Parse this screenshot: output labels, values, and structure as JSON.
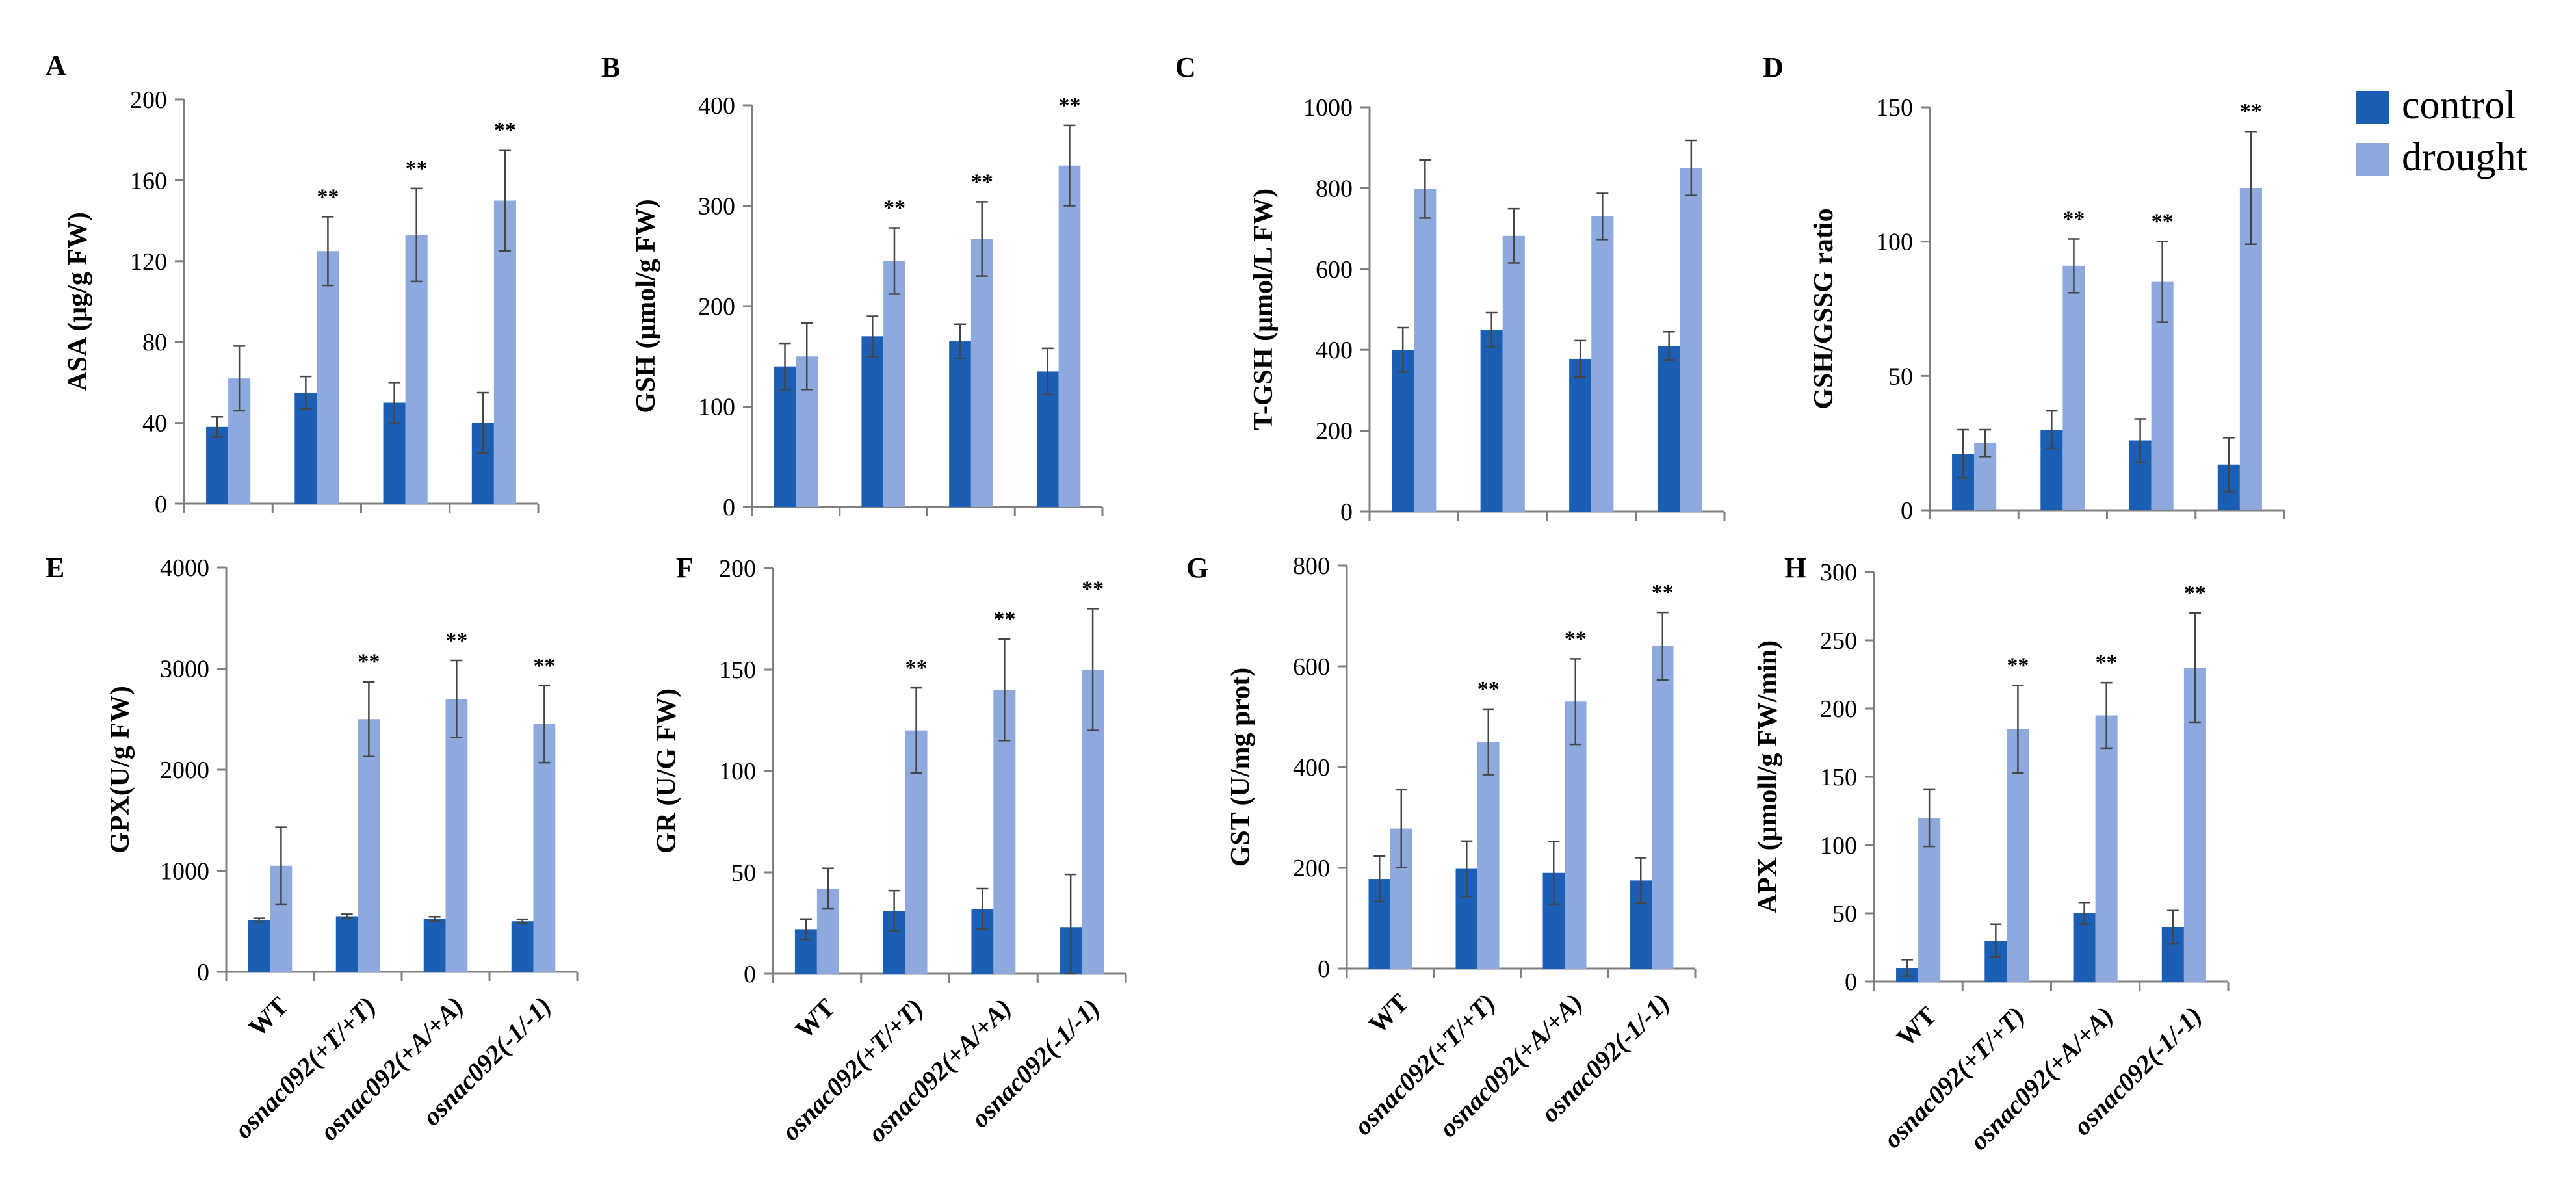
{
  "legend": {
    "items": [
      {
        "label": "control",
        "color": "#1a5fb4"
      },
      {
        "label": "drought",
        "color": "#8ea9de"
      }
    ]
  },
  "colors": {
    "control": "#1a5fb4",
    "drought": "#8ea9de",
    "axis": "#7f7f7f"
  },
  "significance_mark": "**",
  "categories": [
    "WT",
    "osnac092(+T/+T)",
    "osnac092(+A/+A)",
    "osnac092(-1/-1)"
  ],
  "chart_data": [
    {
      "type": "bar",
      "panel": "A",
      "ylabel": "ASA (μg/g   FW)",
      "ylim": [
        0,
        200
      ],
      "yticks": [
        0,
        40,
        80,
        120,
        160,
        200
      ],
      "categories": [
        "WT",
        "osnac092(+T/+T)",
        "osnac092(+A/+A)",
        "osnac092(-1/-1)"
      ],
      "series": [
        {
          "name": "control",
          "values": [
            38,
            55,
            50,
            40
          ],
          "errors": [
            5,
            8,
            10,
            15
          ]
        },
        {
          "name": "drought",
          "values": [
            62,
            125,
            133,
            150
          ],
          "errors": [
            16,
            17,
            23,
            25
          ]
        }
      ],
      "significance": [
        false,
        true,
        true,
        true
      ]
    },
    {
      "type": "bar",
      "panel": "B",
      "ylabel": "GSH  (μmol/g FW)",
      "ylim": [
        0,
        400
      ],
      "yticks": [
        0,
        100,
        200,
        300,
        400
      ],
      "categories": [
        "WT",
        "osnac092(+T/+T)",
        "osnac092(+A/+A)",
        "osnac092(-1/-1)"
      ],
      "series": [
        {
          "name": "control",
          "values": [
            140,
            170,
            165,
            135
          ],
          "errors": [
            23,
            20,
            17,
            23
          ]
        },
        {
          "name": "drought",
          "values": [
            150,
            245,
            267,
            340
          ],
          "errors": [
            33,
            33,
            37,
            40
          ]
        }
      ],
      "significance": [
        false,
        true,
        true,
        true
      ]
    },
    {
      "type": "bar",
      "panel": "C",
      "ylabel": "T-GSH   (μmol/L FW)",
      "ylim": [
        0,
        1000
      ],
      "yticks": [
        0,
        200,
        400,
        600,
        800,
        1000
      ],
      "categories": [
        "WT",
        "osnac092(+T/+T)",
        "osnac092(+A/+A)",
        "osnac092(-1/-1)"
      ],
      "series": [
        {
          "name": "control",
          "values": [
            400,
            450,
            378,
            410
          ],
          "errors": [
            55,
            42,
            45,
            35
          ]
        },
        {
          "name": "drought",
          "values": [
            798,
            682,
            730,
            850
          ],
          "errors": [
            72,
            67,
            57,
            68
          ]
        }
      ],
      "significance": [
        false,
        false,
        false,
        false
      ]
    },
    {
      "type": "bar",
      "panel": "D",
      "ylabel": "GSH/GSSG  ratio",
      "ylim": [
        0,
        150
      ],
      "yticks": [
        0,
        50,
        100,
        150
      ],
      "categories": [
        "WT",
        "osnac092(+T/+T)",
        "osnac092(+A/+A)",
        "osnac092(-1/-1)"
      ],
      "series": [
        {
          "name": "control",
          "values": [
            21,
            30,
            26,
            17
          ],
          "errors": [
            9,
            7,
            8,
            10
          ]
        },
        {
          "name": "drought",
          "values": [
            25,
            91,
            85,
            120
          ],
          "errors": [
            5,
            10,
            15,
            21
          ]
        }
      ],
      "significance": [
        false,
        true,
        true,
        true
      ]
    },
    {
      "type": "bar",
      "panel": "E",
      "ylabel": "GPX(U/g  FW)",
      "ylim": [
        0,
        4000
      ],
      "yticks": [
        0,
        1000,
        2000,
        3000,
        4000
      ],
      "categories": [
        "WT",
        "osnac092(+T/+T)",
        "osnac092(+A/+A)",
        "osnac092(-1/-1)"
      ],
      "series": [
        {
          "name": "control",
          "values": [
            510,
            550,
            525,
            500
          ],
          "errors": [
            20,
            20,
            20,
            20
          ]
        },
        {
          "name": "drought",
          "values": [
            1050,
            2500,
            2700,
            2450
          ],
          "errors": [
            380,
            370,
            380,
            380
          ]
        }
      ],
      "significance": [
        false,
        true,
        true,
        true
      ]
    },
    {
      "type": "bar",
      "panel": "F",
      "ylabel": "GR  (U/G FW)",
      "ylim": [
        0,
        200
      ],
      "yticks": [
        0,
        50,
        100,
        150,
        200
      ],
      "categories": [
        "WT",
        "osnac092(+T/+T)",
        "osnac092(+A/+A)",
        "osnac092(-1/-1)"
      ],
      "series": [
        {
          "name": "control",
          "values": [
            22,
            31,
            32,
            23
          ],
          "errors": [
            5,
            10,
            10,
            26
          ]
        },
        {
          "name": "drought",
          "values": [
            42,
            120,
            140,
            150
          ],
          "errors": [
            10,
            21,
            25,
            30
          ]
        }
      ],
      "significance": [
        false,
        true,
        true,
        true
      ]
    },
    {
      "type": "bar",
      "panel": "G",
      "ylabel": "GST  (U/mg  prot)",
      "ylim": [
        0,
        800
      ],
      "yticks": [
        0,
        200,
        400,
        600,
        800
      ],
      "categories": [
        "WT",
        "osnac092(+T/+T)",
        "osnac092(+A/+A)",
        "osnac092(-1/-1)"
      ],
      "series": [
        {
          "name": "control",
          "values": [
            178,
            198,
            190,
            175
          ],
          "errors": [
            45,
            55,
            62,
            45
          ]
        },
        {
          "name": "drought",
          "values": [
            278,
            450,
            530,
            640
          ],
          "errors": [
            77,
            65,
            85,
            67
          ]
        }
      ],
      "significance": [
        false,
        true,
        true,
        true
      ]
    },
    {
      "type": "bar",
      "panel": "H",
      "ylabel": "APX   (μmoll/g  FW/min)",
      "ylim": [
        0,
        300
      ],
      "yticks": [
        0,
        50,
        100,
        150,
        200,
        250,
        300
      ],
      "categories": [
        "WT",
        "osnac092(+T/+T)",
        "osnac092(+A/+A)",
        "osnac092(-1/-1)"
      ],
      "series": [
        {
          "name": "control",
          "values": [
            10,
            30,
            50,
            40
          ],
          "errors": [
            6,
            12,
            8,
            12
          ]
        },
        {
          "name": "drought",
          "values": [
            120,
            185,
            195,
            230
          ],
          "errors": [
            21,
            32,
            24,
            40
          ]
        }
      ],
      "significance": [
        false,
        true,
        true,
        true
      ]
    }
  ]
}
